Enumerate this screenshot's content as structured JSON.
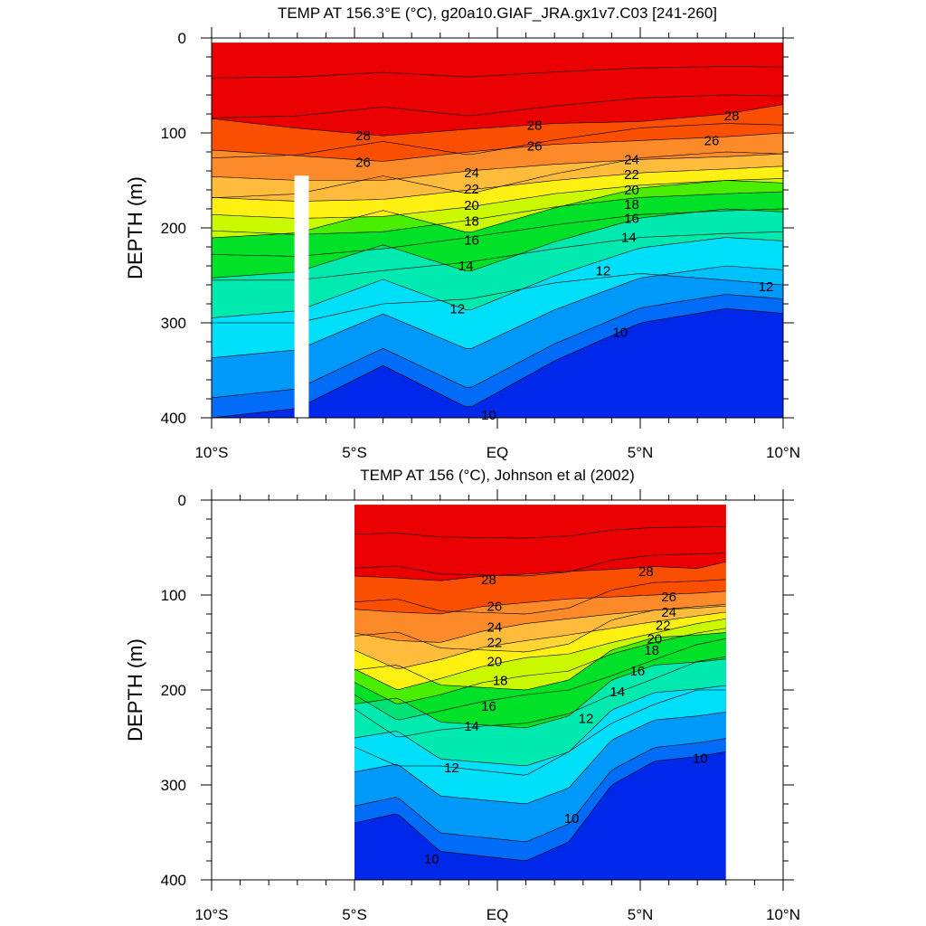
{
  "chart_data": [
    {
      "type": "contour",
      "title": "TEMP AT 156.3°E (°C), g20a10.GIAF_JRA.gx1v7.C03 [241-260]",
      "xlabel": "",
      "ylabel": "DEPTH (m)",
      "xlim": [
        -10,
        10
      ],
      "ylim": [
        400,
        0
      ],
      "x_ticks": [
        -10,
        -5,
        0,
        5,
        10
      ],
      "x_tick_labels": [
        "10°S",
        "5°S",
        "EQ",
        "5°N",
        "10°N"
      ],
      "y_ticks": [
        0,
        100,
        200,
        300,
        400
      ],
      "y_tick_labels": [
        "0",
        "100",
        "200",
        "300",
        "400"
      ],
      "data_extent_lat": [
        -10,
        10
      ],
      "data_extent_depth": [
        5,
        400
      ],
      "masked_column_lat": [
        -7.1,
        -6.6
      ],
      "masked_column_depth": [
        145,
        400
      ],
      "contour_interval": 1,
      "levels": [
        9,
        10,
        11,
        12,
        13,
        14,
        15,
        16,
        17,
        18,
        19,
        20,
        21,
        22,
        23,
        24,
        25,
        26,
        27,
        28,
        29
      ],
      "isotherm_depths": {
        "lat": [
          -10,
          -7,
          -4,
          -1,
          2,
          5,
          8,
          10
        ],
        "29": [
          0,
          0,
          0,
          0,
          0,
          0,
          0,
          0
        ],
        "28": [
          85,
          95,
          103,
          96,
          90,
          88,
          80,
          70
        ],
        "26": [
          118,
          124,
          130,
          120,
          112,
          108,
          104,
          100
        ],
        "24": [
          146,
          150,
          150,
          140,
          133,
          128,
          125,
          122
        ],
        "22": [
          168,
          172,
          170,
          160,
          150,
          142,
          138,
          135
        ],
        "20": [
          186,
          190,
          188,
          178,
          164,
          155,
          150,
          148
        ],
        "18": [
          203,
          207,
          204,
          192,
          178,
          168,
          164,
          162
        ],
        "16": [
          228,
          230,
          222,
          210,
          197,
          186,
          182,
          180
        ],
        "14": [
          255,
          255,
          245,
          236,
          222,
          210,
          206,
          204
        ],
        "12": [
          300,
          300,
          280,
          275,
          258,
          248,
          255,
          260
        ],
        "10": [
          400,
          390,
          345,
          390,
          340,
          300,
          285,
          290
        ]
      },
      "contour_labels": [
        {
          "text": "28",
          "lat": -4.7,
          "depth": 103
        },
        {
          "text": "28",
          "lat": 1.3,
          "depth": 92
        },
        {
          "text": "28",
          "lat": 8.2,
          "depth": 82
        },
        {
          "text": "26",
          "lat": -4.7,
          "depth": 131
        },
        {
          "text": "26",
          "lat": 1.3,
          "depth": 114
        },
        {
          "text": "26",
          "lat": 7.5,
          "depth": 108
        },
        {
          "text": "24",
          "lat": -0.9,
          "depth": 142
        },
        {
          "text": "24",
          "lat": 4.7,
          "depth": 128
        },
        {
          "text": "22",
          "lat": -0.9,
          "depth": 159
        },
        {
          "text": "22",
          "lat": 4.7,
          "depth": 144
        },
        {
          "text": "20",
          "lat": -0.9,
          "depth": 176
        },
        {
          "text": "20",
          "lat": 4.7,
          "depth": 160
        },
        {
          "text": "18",
          "lat": -0.9,
          "depth": 193
        },
        {
          "text": "18",
          "lat": 4.7,
          "depth": 175
        },
        {
          "text": "16",
          "lat": -0.9,
          "depth": 213
        },
        {
          "text": "16",
          "lat": 4.7,
          "depth": 190
        },
        {
          "text": "14",
          "lat": -1.1,
          "depth": 240
        },
        {
          "text": "14",
          "lat": 4.6,
          "depth": 210
        },
        {
          "text": "12",
          "lat": 3.7,
          "depth": 245
        },
        {
          "text": "12",
          "lat": 9.4,
          "depth": 262
        },
        {
          "text": "12",
          "lat": -1.4,
          "depth": 285
        },
        {
          "text": "10",
          "lat": 4.3,
          "depth": 310
        },
        {
          "text": "10",
          "lat": -0.3,
          "depth": 397
        }
      ]
    },
    {
      "type": "contour",
      "title": "TEMP AT 156 (°C), Johnson et al (2002)",
      "xlabel": "",
      "ylabel": "DEPTH (m)",
      "xlim": [
        -10,
        10
      ],
      "ylim": [
        400,
        0
      ],
      "x_ticks": [
        -10,
        -5,
        0,
        5,
        10
      ],
      "x_tick_labels": [
        "10°S",
        "5°S",
        "EQ",
        "5°N",
        "10°N"
      ],
      "y_ticks": [
        0,
        100,
        200,
        300,
        400
      ],
      "y_tick_labels": [
        "0",
        "100",
        "200",
        "300",
        "400"
      ],
      "data_extent_lat": [
        -5,
        8
      ],
      "data_extent_depth": [
        5,
        400
      ],
      "contour_interval": 1,
      "levels": [
        9,
        10,
        11,
        12,
        13,
        14,
        15,
        16,
        17,
        18,
        19,
        20,
        21,
        22,
        23,
        24,
        25,
        26,
        27,
        28,
        29
      ],
      "isotherm_depths": {
        "lat": [
          -5,
          -3.5,
          -2,
          -0.5,
          1,
          2.5,
          4,
          5.5,
          7,
          8
        ],
        "29": [
          0,
          0,
          0,
          0,
          0,
          0,
          0,
          0,
          0,
          0
        ],
        "28": [
          80,
          82,
          85,
          80,
          78,
          75,
          73,
          70,
          72,
          65
        ],
        "26": [
          115,
          118,
          120,
          112,
          108,
          104,
          102,
          100,
          98,
          96
        ],
        "24": [
          140,
          148,
          150,
          138,
          130,
          125,
          120,
          116,
          112,
          110
        ],
        "22": [
          158,
          178,
          168,
          155,
          148,
          142,
          135,
          128,
          122,
          118
        ],
        "20": [
          178,
          200,
          188,
          175,
          166,
          162,
          150,
          140,
          130,
          125
        ],
        "18": [
          192,
          215,
          205,
          192,
          185,
          180,
          162,
          150,
          140,
          135
        ],
        "16": [
          205,
          232,
          222,
          212,
          205,
          200,
          185,
          168,
          152,
          146
        ],
        "14": [
          220,
          250,
          242,
          238,
          235,
          225,
          205,
          188,
          170,
          165
        ],
        "12": [
          260,
          280,
          280,
          285,
          290,
          265,
          235,
          215,
          200,
          200
        ],
        "10": [
          340,
          330,
          370,
          375,
          380,
          360,
          300,
          275,
          270,
          265
        ]
      },
      "contour_labels": [
        {
          "text": "28",
          "lat": -0.3,
          "depth": 84
        },
        {
          "text": "28",
          "lat": 5.2,
          "depth": 75
        },
        {
          "text": "26",
          "lat": -0.1,
          "depth": 112
        },
        {
          "text": "26",
          "lat": 6.0,
          "depth": 102
        },
        {
          "text": "24",
          "lat": -0.1,
          "depth": 134
        },
        {
          "text": "24",
          "lat": 6.0,
          "depth": 118
        },
        {
          "text": "22",
          "lat": -0.1,
          "depth": 150
        },
        {
          "text": "22",
          "lat": 5.8,
          "depth": 132
        },
        {
          "text": "20",
          "lat": -0.1,
          "depth": 170
        },
        {
          "text": "20",
          "lat": 5.5,
          "depth": 146
        },
        {
          "text": "18",
          "lat": 5.4,
          "depth": 158
        },
        {
          "text": "18",
          "lat": 0.1,
          "depth": 190
        },
        {
          "text": "16",
          "lat": 4.9,
          "depth": 180
        },
        {
          "text": "16",
          "lat": -0.3,
          "depth": 217
        },
        {
          "text": "14",
          "lat": 4.2,
          "depth": 202
        },
        {
          "text": "14",
          "lat": -0.9,
          "depth": 238
        },
        {
          "text": "12",
          "lat": 3.1,
          "depth": 230
        },
        {
          "text": "12",
          "lat": -1.6,
          "depth": 282
        },
        {
          "text": "10",
          "lat": 7.1,
          "depth": 272
        },
        {
          "text": "10",
          "lat": 2.6,
          "depth": 335
        },
        {
          "text": "10",
          "lat": -2.3,
          "depth": 378
        }
      ]
    }
  ]
}
